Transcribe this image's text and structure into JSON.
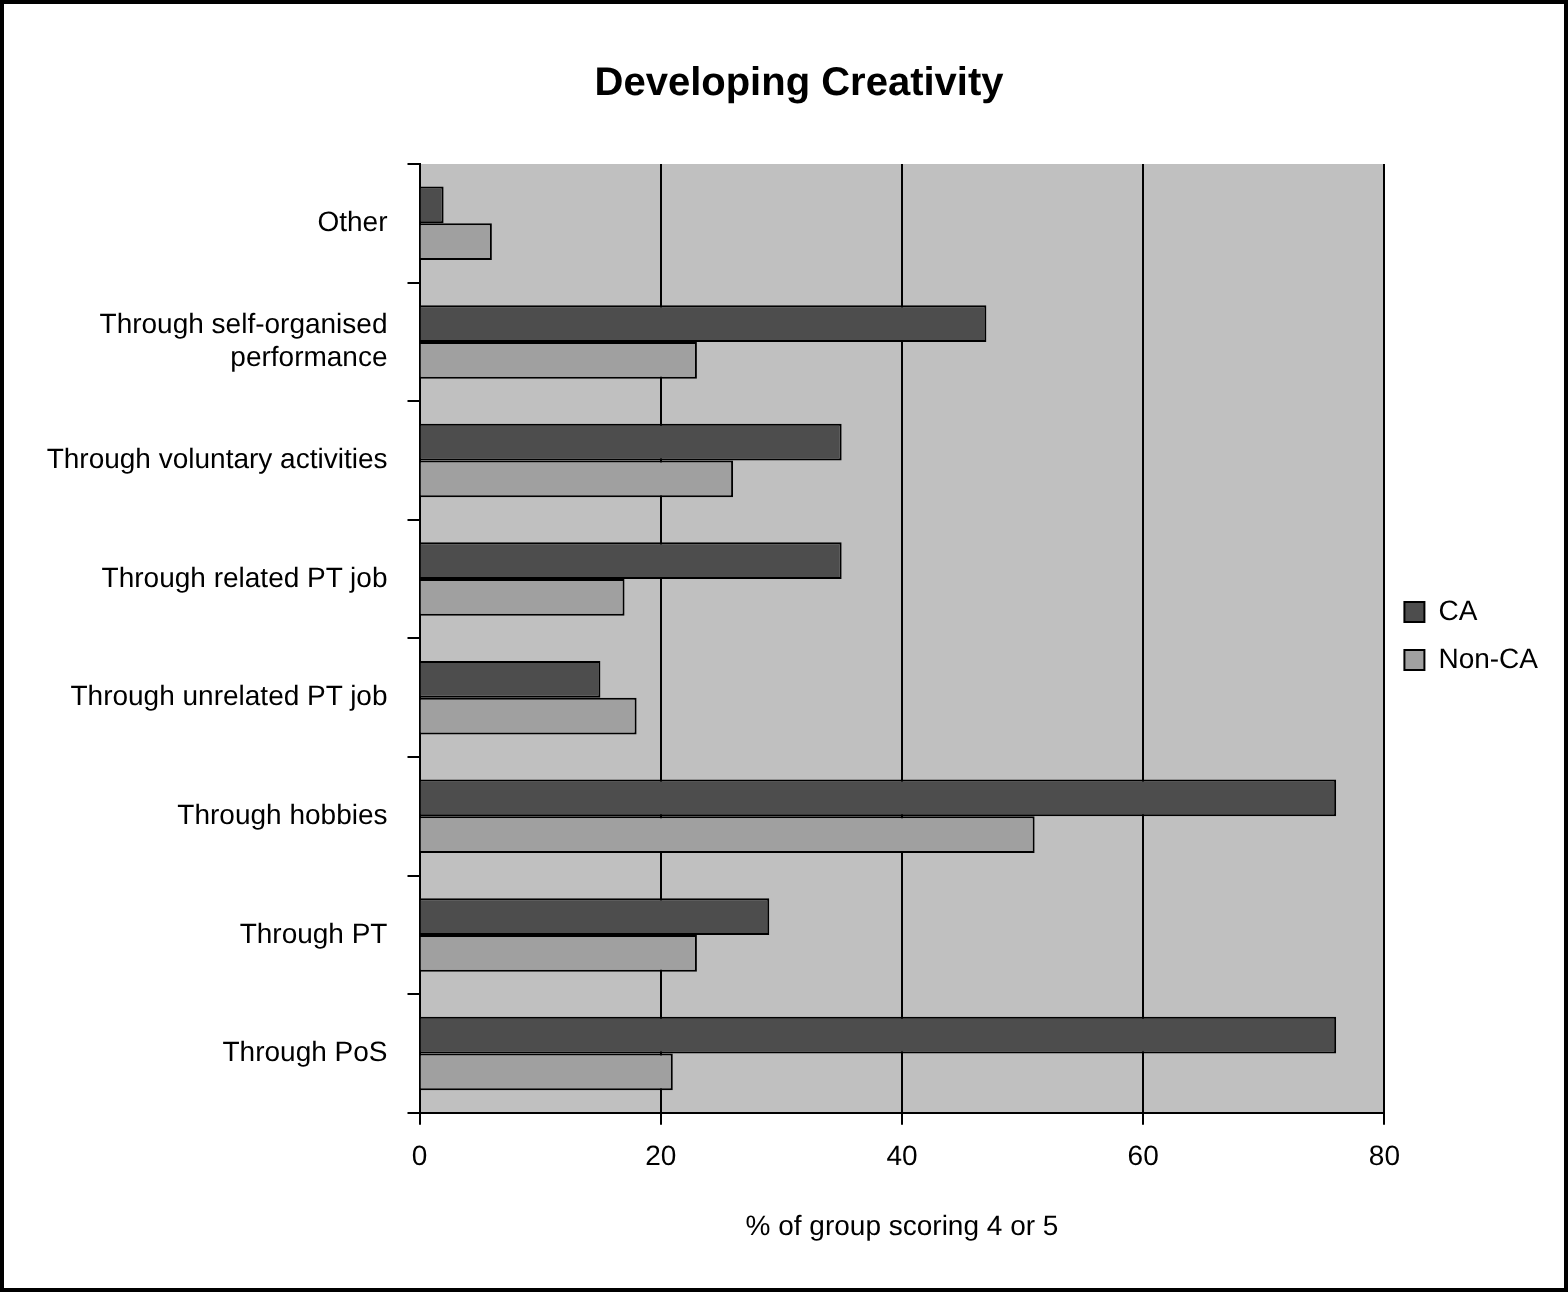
{
  "chart_data": {
    "type": "bar",
    "orientation": "horizontal",
    "title": "Developing Creativity",
    "xlabel": "% of group scoring 4 or 5",
    "categories": [
      "Other",
      "Through self-organised performance",
      "Through voluntary activities",
      "Through related PT job",
      "Through unrelated PT job",
      "Through hobbies",
      "Through PT",
      "Through PoS"
    ],
    "series": [
      {
        "name": "CA",
        "color": "#4d4d4d",
        "values": [
          2,
          47,
          35,
          35,
          15,
          76,
          29,
          76
        ]
      },
      {
        "name": "Non-CA",
        "color": "#a0a0a0",
        "values": [
          6,
          23,
          26,
          17,
          18,
          51,
          23,
          21
        ]
      }
    ],
    "xlim": [
      0,
      80
    ],
    "xticks": [
      0,
      20,
      40,
      60,
      80
    ],
    "grid": "x",
    "legend": "right"
  }
}
